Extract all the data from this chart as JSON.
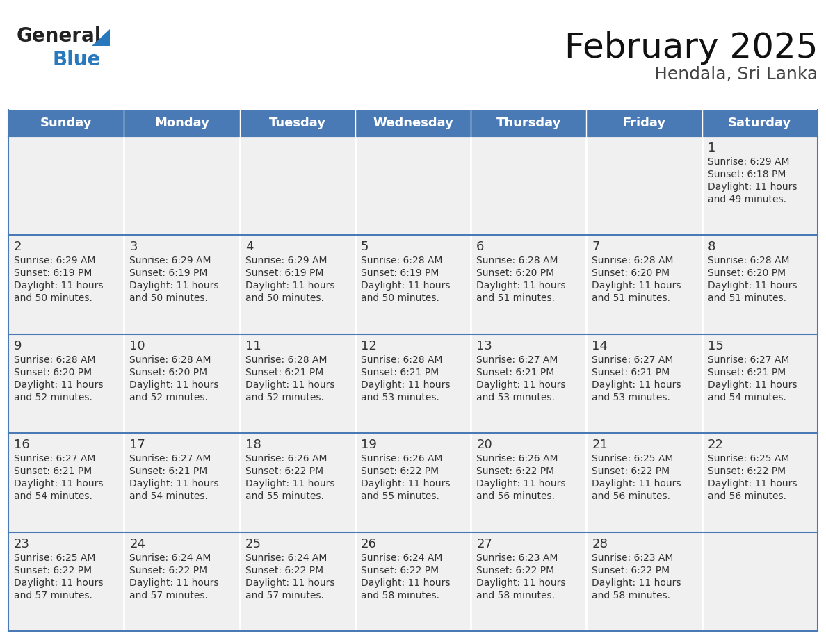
{
  "title": "February 2025",
  "subtitle": "Hendala, Sri Lanka",
  "header_bg": "#4a7ab5",
  "header_text_color": "#FFFFFF",
  "cell_bg": "#F0F0F0",
  "border_color": "#4a7ab5",
  "text_color": "#333333",
  "days_of_week": [
    "Sunday",
    "Monday",
    "Tuesday",
    "Wednesday",
    "Thursday",
    "Friday",
    "Saturday"
  ],
  "calendar_data": [
    [
      null,
      null,
      null,
      null,
      null,
      null,
      {
        "day": "1",
        "sunrise": "6:29 AM",
        "sunset": "6:18 PM",
        "daylight_line1": "Daylight: 11 hours",
        "daylight_line2": "and 49 minutes."
      }
    ],
    [
      {
        "day": "2",
        "sunrise": "6:29 AM",
        "sunset": "6:19 PM",
        "daylight_line1": "Daylight: 11 hours",
        "daylight_line2": "and 50 minutes."
      },
      {
        "day": "3",
        "sunrise": "6:29 AM",
        "sunset": "6:19 PM",
        "daylight_line1": "Daylight: 11 hours",
        "daylight_line2": "and 50 minutes."
      },
      {
        "day": "4",
        "sunrise": "6:29 AM",
        "sunset": "6:19 PM",
        "daylight_line1": "Daylight: 11 hours",
        "daylight_line2": "and 50 minutes."
      },
      {
        "day": "5",
        "sunrise": "6:28 AM",
        "sunset": "6:19 PM",
        "daylight_line1": "Daylight: 11 hours",
        "daylight_line2": "and 50 minutes."
      },
      {
        "day": "6",
        "sunrise": "6:28 AM",
        "sunset": "6:20 PM",
        "daylight_line1": "Daylight: 11 hours",
        "daylight_line2": "and 51 minutes."
      },
      {
        "day": "7",
        "sunrise": "6:28 AM",
        "sunset": "6:20 PM",
        "daylight_line1": "Daylight: 11 hours",
        "daylight_line2": "and 51 minutes."
      },
      {
        "day": "8",
        "sunrise": "6:28 AM",
        "sunset": "6:20 PM",
        "daylight_line1": "Daylight: 11 hours",
        "daylight_line2": "and 51 minutes."
      }
    ],
    [
      {
        "day": "9",
        "sunrise": "6:28 AM",
        "sunset": "6:20 PM",
        "daylight_line1": "Daylight: 11 hours",
        "daylight_line2": "and 52 minutes."
      },
      {
        "day": "10",
        "sunrise": "6:28 AM",
        "sunset": "6:20 PM",
        "daylight_line1": "Daylight: 11 hours",
        "daylight_line2": "and 52 minutes."
      },
      {
        "day": "11",
        "sunrise": "6:28 AM",
        "sunset": "6:21 PM",
        "daylight_line1": "Daylight: 11 hours",
        "daylight_line2": "and 52 minutes."
      },
      {
        "day": "12",
        "sunrise": "6:28 AM",
        "sunset": "6:21 PM",
        "daylight_line1": "Daylight: 11 hours",
        "daylight_line2": "and 53 minutes."
      },
      {
        "day": "13",
        "sunrise": "6:27 AM",
        "sunset": "6:21 PM",
        "daylight_line1": "Daylight: 11 hours",
        "daylight_line2": "and 53 minutes."
      },
      {
        "day": "14",
        "sunrise": "6:27 AM",
        "sunset": "6:21 PM",
        "daylight_line1": "Daylight: 11 hours",
        "daylight_line2": "and 53 minutes."
      },
      {
        "day": "15",
        "sunrise": "6:27 AM",
        "sunset": "6:21 PM",
        "daylight_line1": "Daylight: 11 hours",
        "daylight_line2": "and 54 minutes."
      }
    ],
    [
      {
        "day": "16",
        "sunrise": "6:27 AM",
        "sunset": "6:21 PM",
        "daylight_line1": "Daylight: 11 hours",
        "daylight_line2": "and 54 minutes."
      },
      {
        "day": "17",
        "sunrise": "6:27 AM",
        "sunset": "6:21 PM",
        "daylight_line1": "Daylight: 11 hours",
        "daylight_line2": "and 54 minutes."
      },
      {
        "day": "18",
        "sunrise": "6:26 AM",
        "sunset": "6:22 PM",
        "daylight_line1": "Daylight: 11 hours",
        "daylight_line2": "and 55 minutes."
      },
      {
        "day": "19",
        "sunrise": "6:26 AM",
        "sunset": "6:22 PM",
        "daylight_line1": "Daylight: 11 hours",
        "daylight_line2": "and 55 minutes."
      },
      {
        "day": "20",
        "sunrise": "6:26 AM",
        "sunset": "6:22 PM",
        "daylight_line1": "Daylight: 11 hours",
        "daylight_line2": "and 56 minutes."
      },
      {
        "day": "21",
        "sunrise": "6:25 AM",
        "sunset": "6:22 PM",
        "daylight_line1": "Daylight: 11 hours",
        "daylight_line2": "and 56 minutes."
      },
      {
        "day": "22",
        "sunrise": "6:25 AM",
        "sunset": "6:22 PM",
        "daylight_line1": "Daylight: 11 hours",
        "daylight_line2": "and 56 minutes."
      }
    ],
    [
      {
        "day": "23",
        "sunrise": "6:25 AM",
        "sunset": "6:22 PM",
        "daylight_line1": "Daylight: 11 hours",
        "daylight_line2": "and 57 minutes."
      },
      {
        "day": "24",
        "sunrise": "6:24 AM",
        "sunset": "6:22 PM",
        "daylight_line1": "Daylight: 11 hours",
        "daylight_line2": "and 57 minutes."
      },
      {
        "day": "25",
        "sunrise": "6:24 AM",
        "sunset": "6:22 PM",
        "daylight_line1": "Daylight: 11 hours",
        "daylight_line2": "and 57 minutes."
      },
      {
        "day": "26",
        "sunrise": "6:24 AM",
        "sunset": "6:22 PM",
        "daylight_line1": "Daylight: 11 hours",
        "daylight_line2": "and 58 minutes."
      },
      {
        "day": "27",
        "sunrise": "6:23 AM",
        "sunset": "6:22 PM",
        "daylight_line1": "Daylight: 11 hours",
        "daylight_line2": "and 58 minutes."
      },
      {
        "day": "28",
        "sunrise": "6:23 AM",
        "sunset": "6:22 PM",
        "daylight_line1": "Daylight: 11 hours",
        "daylight_line2": "and 58 minutes."
      },
      null
    ]
  ],
  "logo_general_color": "#222222",
  "logo_blue_color": "#2878BE",
  "logo_triangle_color": "#2878BE",
  "title_fontsize": 36,
  "subtitle_fontsize": 18,
  "header_fontsize": 13,
  "day_num_fontsize": 13,
  "cell_text_fontsize": 10
}
